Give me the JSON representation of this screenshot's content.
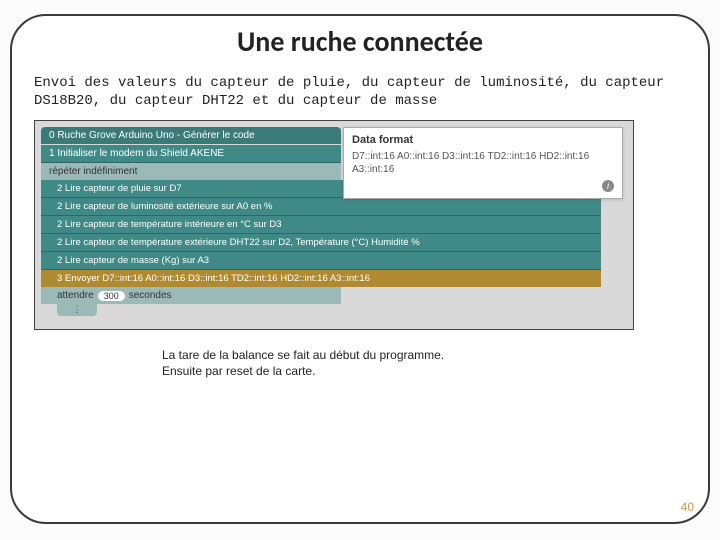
{
  "title": "Une ruche connectée",
  "description": "Envoi des valeurs du capteur de pluie, du capteur de luminosité, du capteur DS18B20, du capteur DHT22 et du capteur de masse",
  "blocks": {
    "header": "0 Ruche Grove Arduino Uno - Générer le code",
    "init": "1 Initialiser le modem du Shield AKENE",
    "repeat": "répéter indéfiniment",
    "sensors": [
      "2 Lire capteur de pluie sur D7",
      "2 Lire capteur de luminosité extérieure sur A0 en %",
      "2 Lire capteur de température intérieure en °C sur D3",
      "2 Lire capteur de température extérieure DHT22 sur D2, Température (°C) Humidité %",
      "2 Lire capteur de masse (Kg) sur A3"
    ],
    "send": "3 Envoyer D7::int:16 A0::int:16 D3::int:16 TD2::int:16 HD2::int:16 A3::int:16",
    "wait_prefix": "attendre",
    "wait_value": "300",
    "wait_suffix": "secondes",
    "end_stub": "⋮"
  },
  "data_format": {
    "title": "Data format",
    "body": "D7::int:16 A0::int:16 D3::int:16 TD2::int:16 HD2::int:16 A3::int:16",
    "info": "i"
  },
  "note_line1": "La tare de la balance se fait au début du programme.",
  "note_line2": "Ensuite par reset de la carte.",
  "page_number": "40",
  "colors": {
    "frame_border": "#3a3a3a",
    "teal_block": "#3f8a87",
    "teal_light": "#9bb9b6",
    "gold_block": "#b08a30",
    "workspace_bg": "#d9d9d9",
    "page_num": "#c9954d"
  }
}
